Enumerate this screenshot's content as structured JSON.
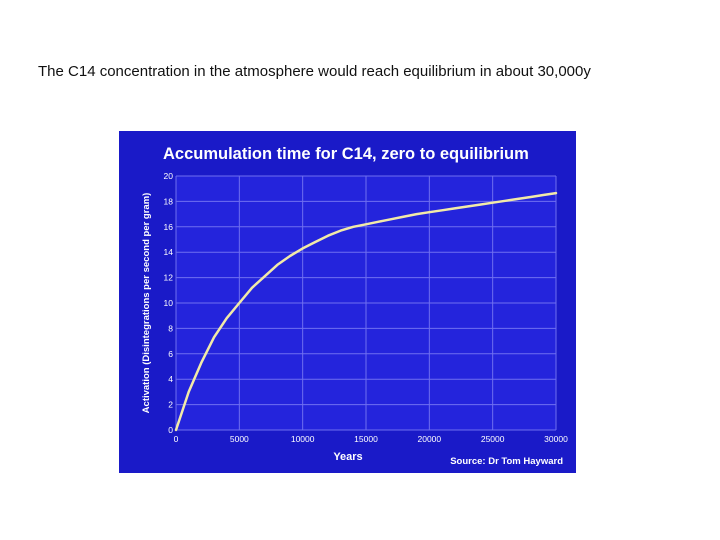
{
  "slide": {
    "caption": "The C14 concentration in the atmosphere would reach equilibrium in about 30,000y"
  },
  "colors": {
    "panel_background": "#1a1ac8",
    "plot_background": "#2424dc",
    "grid": "#6f6ff0",
    "curve": "#f2eaa8",
    "text": "#ffffff"
  },
  "chart_data": {
    "type": "line",
    "title": "Accumulation time for C14, zero to equilibrium",
    "xlabel": "Years",
    "ylabel": "Activation (Disintegrations per second per gram)",
    "source": "Source: Dr Tom Hayward",
    "xlim": [
      0,
      30000
    ],
    "ylim": [
      0,
      20
    ],
    "x_ticks": [
      0,
      5000,
      10000,
      15000,
      20000,
      25000,
      30000
    ],
    "x_tick_labels": [
      "0",
      "5000",
      "10000",
      "15000",
      "20000",
      "25000",
      "30000"
    ],
    "y_ticks": [
      0,
      2,
      4,
      6,
      8,
      10,
      12,
      14,
      16,
      18,
      20
    ],
    "y_tick_labels": [
      "0",
      "2",
      "4",
      "6",
      "8",
      "10",
      "12",
      "14",
      "16",
      "18",
      "20"
    ],
    "grid": true,
    "series": [
      {
        "x": [
          0,
          1000,
          2000,
          3000,
          4000,
          5000,
          6000,
          7000,
          8000,
          9000,
          10000,
          11000,
          12000,
          13000,
          14000,
          15000,
          16000,
          17000,
          18000,
          19000,
          20000,
          21000,
          22000,
          23000,
          24000,
          25000,
          26000,
          27000,
          28000,
          29000,
          30000
        ],
        "y": [
          0,
          3.0,
          5.3,
          7.3,
          8.8,
          10.0,
          11.2,
          12.1,
          13.0,
          13.7,
          14.3,
          14.8,
          15.3,
          15.7,
          16.0,
          16.2,
          16.4,
          16.6,
          16.8,
          17.0,
          17.15,
          17.3,
          17.45,
          17.6,
          17.75,
          17.9,
          18.05,
          18.2,
          18.35,
          18.5,
          18.65
        ]
      }
    ]
  }
}
